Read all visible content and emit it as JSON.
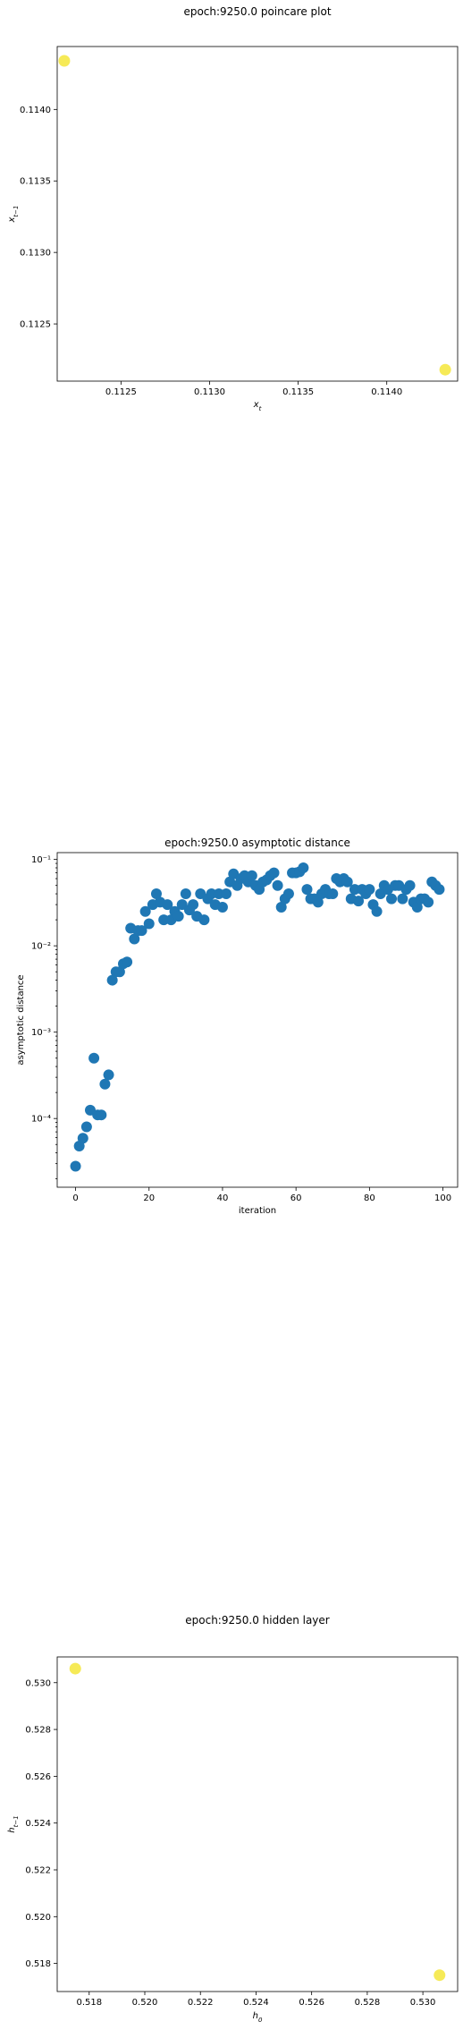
{
  "chart_data": [
    {
      "type": "scatter",
      "title": "epoch:9250.0 poincare plot",
      "xlabel": "x_t",
      "ylabel": "x_{t−1}",
      "xlim": [
        0.11214,
        0.1144
      ],
      "ylim": [
        0.1121,
        0.11444
      ],
      "xticks": [
        0.1125,
        0.113,
        0.1135,
        0.114
      ],
      "xtick_labels": [
        "0.1125",
        "0.1130",
        "0.1135",
        "0.1140"
      ],
      "yticks": [
        0.1125,
        0.113,
        0.1135,
        0.114
      ],
      "ytick_labels": [
        "0.1125",
        "0.1130",
        "0.1135",
        "0.1140"
      ],
      "yscale": "linear",
      "grid": false,
      "marker_color": "#f5e639",
      "points": [
        {
          "x": 0.11218,
          "y": 0.11434
        },
        {
          "x": 0.11433,
          "y": 0.11218
        }
      ]
    },
    {
      "type": "scatter",
      "title": "epoch:9250.0 asymptotic distance",
      "xlabel": "iteration",
      "ylabel": "asymptotic distance",
      "xlim": [
        -5,
        104
      ],
      "ylim": [
        1.6e-05,
        0.12
      ],
      "xticks": [
        0,
        20,
        40,
        60,
        80,
        100
      ],
      "xtick_labels": [
        "0",
        "20",
        "40",
        "60",
        "80",
        "100"
      ],
      "yticks": [
        0.0001,
        0.001,
        0.01,
        0.1
      ],
      "ytick_labels": [
        "10⁻⁴",
        "10⁻³",
        "10⁻²",
        "10⁻¹"
      ],
      "yscale": "log",
      "grid": false,
      "marker_color": "#1f77b4",
      "x": [
        0,
        1,
        2,
        3,
        4,
        5,
        6,
        7,
        8,
        9,
        10,
        11,
        12,
        13,
        14,
        15,
        16,
        17,
        18,
        19,
        20,
        21,
        22,
        23,
        24,
        25,
        26,
        27,
        28,
        29,
        30,
        31,
        32,
        33,
        34,
        35,
        36,
        37,
        38,
        39,
        40,
        41,
        42,
        43,
        44,
        45,
        46,
        47,
        48,
        49,
        50,
        51,
        52,
        53,
        54,
        55,
        56,
        57,
        58,
        59,
        60,
        61,
        62,
        63,
        64,
        65,
        66,
        67,
        68,
        69,
        70,
        71,
        72,
        73,
        74,
        75,
        76,
        77,
        78,
        79,
        80,
        81,
        82,
        83,
        84,
        85,
        86,
        87,
        88,
        89,
        90,
        91,
        92,
        93,
        94,
        95,
        96,
        97,
        98,
        99
      ],
      "y": [
        2.8e-05,
        4.8e-05,
        5.9e-05,
        8e-05,
        0.000125,
        0.0005,
        0.00011,
        0.00011,
        0.00025,
        0.00032,
        0.004,
        0.005,
        0.005,
        0.0062,
        0.0065,
        0.016,
        0.012,
        0.015,
        0.015,
        0.025,
        0.018,
        0.03,
        0.04,
        0.032,
        0.02,
        0.03,
        0.02,
        0.025,
        0.022,
        0.03,
        0.04,
        0.026,
        0.03,
        0.022,
        0.04,
        0.02,
        0.035,
        0.04,
        0.03,
        0.04,
        0.028,
        0.04,
        0.055,
        0.068,
        0.05,
        0.06,
        0.065,
        0.055,
        0.065,
        0.05,
        0.045,
        0.055,
        0.058,
        0.065,
        0.07,
        0.05,
        0.028,
        0.035,
        0.04,
        0.07,
        0.07,
        0.072,
        0.08,
        0.045,
        0.035,
        0.035,
        0.032,
        0.04,
        0.045,
        0.04,
        0.04,
        0.06,
        0.055,
        0.06,
        0.055,
        0.035,
        0.045,
        0.033,
        0.045,
        0.04,
        0.045,
        0.03,
        0.025,
        0.04,
        0.05,
        0.045,
        0.035,
        0.05,
        0.05,
        0.035,
        0.045,
        0.05,
        0.032,
        0.028,
        0.035,
        0.035,
        0.032,
        0.055,
        0.05,
        0.045
      ]
    },
    {
      "type": "scatter",
      "title": "epoch:9250.0 hidden layer",
      "xlabel": "h_0",
      "ylabel": "h_{t−1}",
      "xlim": [
        0.51685,
        0.53125
      ],
      "ylim": [
        0.5168,
        0.5311
      ],
      "xticks": [
        0.518,
        0.52,
        0.522,
        0.524,
        0.526,
        0.528,
        0.53
      ],
      "xtick_labels": [
        "0.518",
        "0.520",
        "0.522",
        "0.524",
        "0.526",
        "0.528",
        "0.530"
      ],
      "yticks": [
        0.518,
        0.52,
        0.522,
        0.524,
        0.526,
        0.528,
        0.53
      ],
      "ytick_labels": [
        "0.518",
        "0.520",
        "0.522",
        "0.524",
        "0.526",
        "0.528",
        "0.530"
      ],
      "yscale": "linear",
      "grid": false,
      "marker_color": "#f5e639",
      "points": [
        {
          "x": 0.5175,
          "y": 0.5306
        },
        {
          "x": 0.5306,
          "y": 0.5175
        }
      ]
    }
  ]
}
